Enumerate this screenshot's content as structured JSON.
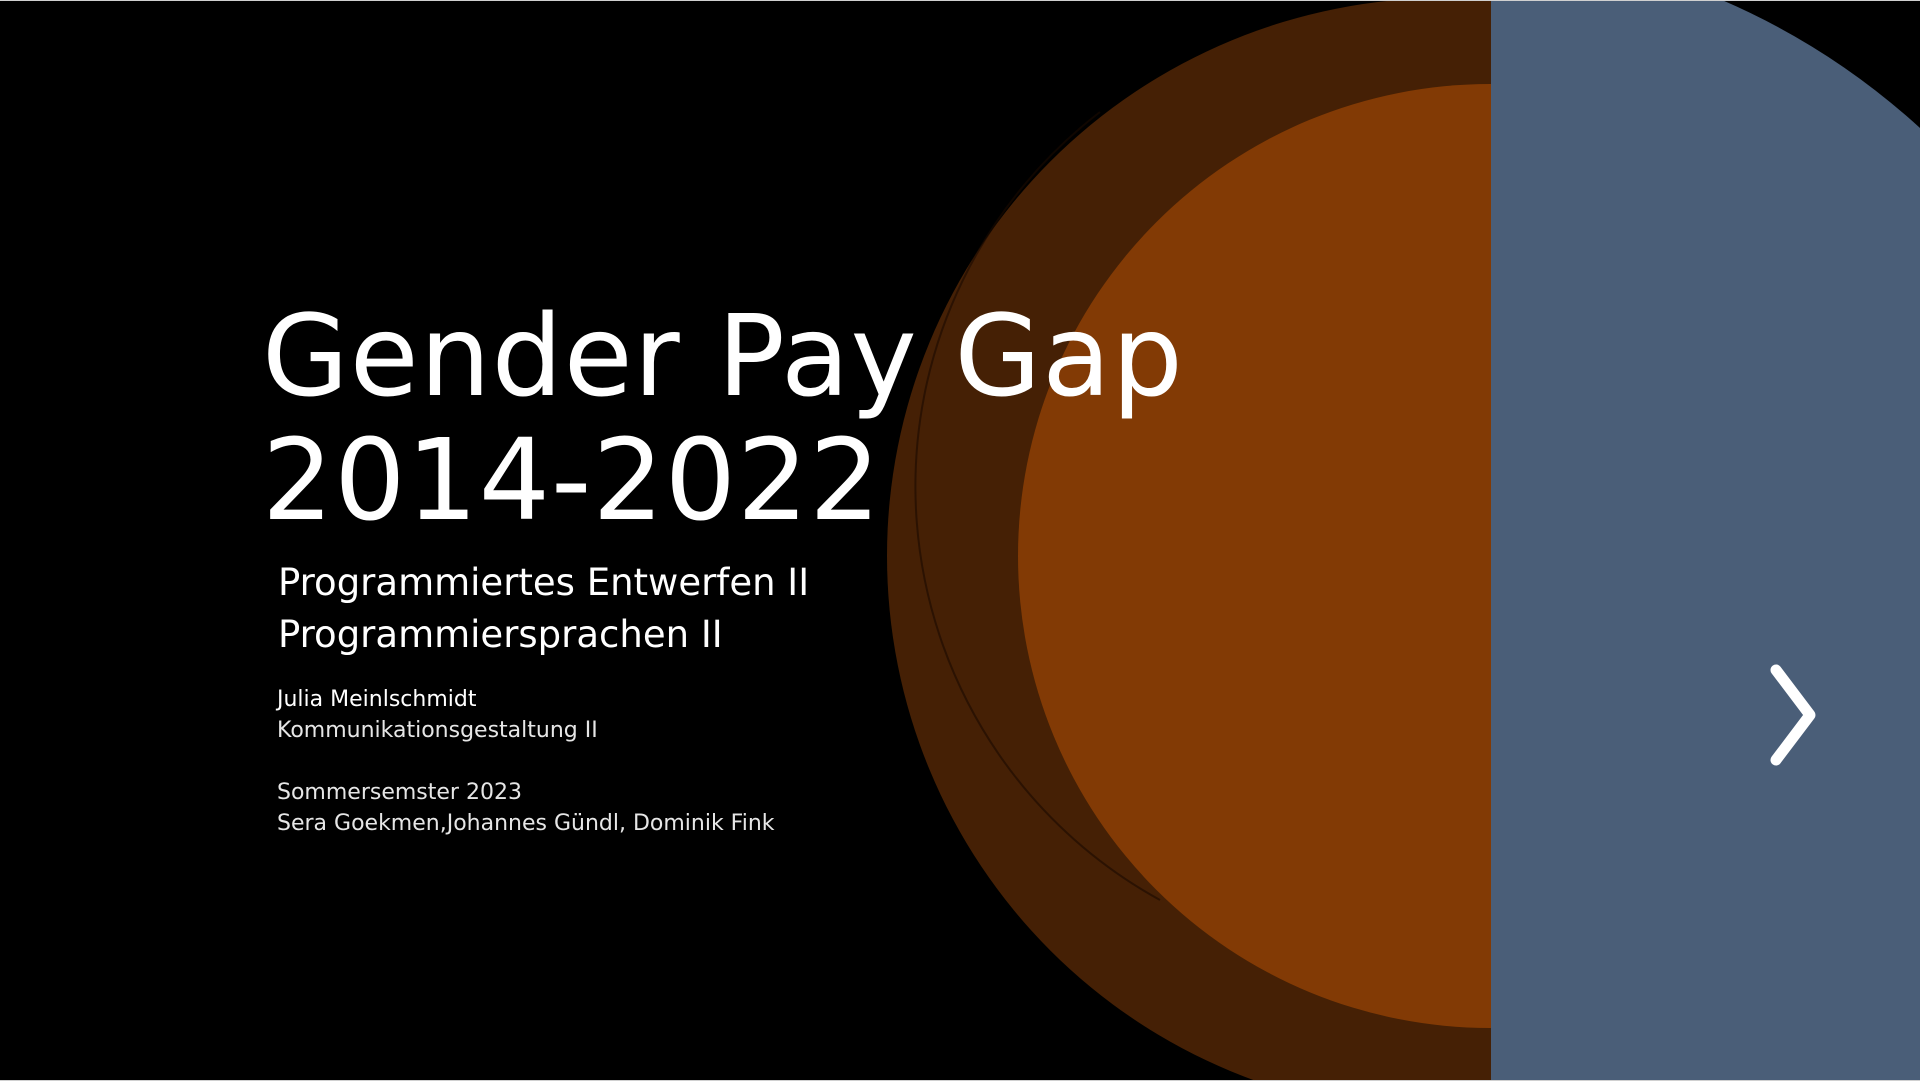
{
  "slide": {
    "title_line1": "Gender Pay Gap",
    "title_line2": "2014-2022",
    "subtitle_line1": "Programmiertes Entwerfen II",
    "subtitle_line2": "Programmiersprachen II",
    "author": "Julia Meinlschmidt",
    "program": "Kommunikationsgestaltung II",
    "semester": "Sommersemster 2023",
    "lecturers": "Sera Goekmen,Johannes Gündl, Dominik Fink"
  },
  "navigation": {
    "next_icon": "chevron-right-icon"
  },
  "colors": {
    "background": "#000000",
    "outer_circle": "#452005",
    "inner_circle": "#823a05",
    "blue_panel": "#4a5e78",
    "text": "#ffffff"
  }
}
